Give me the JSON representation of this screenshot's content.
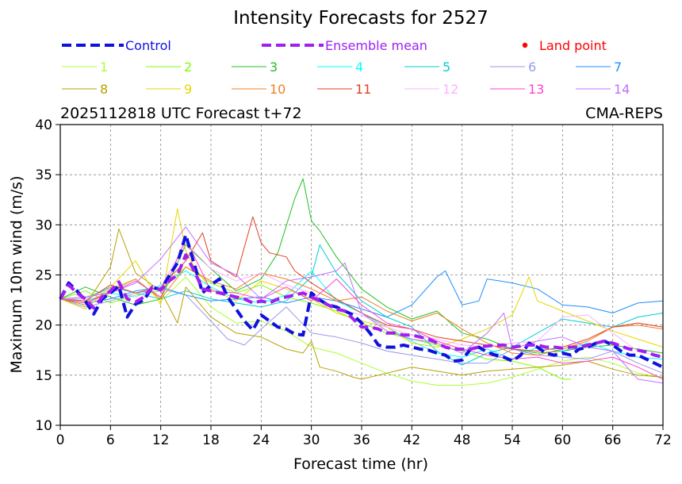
{
  "chart_data": {
    "type": "line",
    "title": "Intensity Forecasts for 2527",
    "subtitle_left": "2025112818 UTC Forecast t+72",
    "subtitle_right": "CMA-REPS",
    "xlabel": "Forecast time (hr)",
    "ylabel": "Maximum 10m wind (m/s)",
    "xlim": [
      0,
      72
    ],
    "ylim": [
      10,
      40
    ],
    "xticks": [
      0,
      6,
      12,
      18,
      24,
      30,
      36,
      42,
      48,
      54,
      60,
      66,
      72
    ],
    "yticks": [
      10,
      15,
      20,
      25,
      30,
      35,
      40
    ],
    "grid": true,
    "legend_special": [
      {
        "name": "Control",
        "color": "#1010e0",
        "style": "dashed"
      },
      {
        "name": "Ensemble mean",
        "color": "#a020f0",
        "style": "dashed"
      },
      {
        "name": "Land point",
        "color": "#ff0000",
        "style": "dot"
      }
    ],
    "series": [
      {
        "name": "Control",
        "color": "#1010e0",
        "width": 4,
        "dash": "12,6",
        "x": [
          0,
          1,
          2,
          3,
          4,
          5,
          6,
          7,
          8,
          9,
          10,
          11,
          12,
          13,
          14,
          15,
          16,
          17,
          18,
          19,
          20,
          21,
          22,
          23,
          24,
          25,
          26,
          27,
          28,
          29,
          30,
          31,
          32,
          33,
          34,
          35,
          36,
          37,
          38,
          39,
          40,
          41,
          42,
          43,
          44,
          45,
          46,
          47,
          48,
          49,
          50,
          51,
          52,
          53,
          54,
          55,
          56,
          57,
          58,
          59,
          60,
          61,
          62,
          63,
          64,
          65,
          66,
          67,
          68,
          69,
          70,
          71,
          72
        ],
        "values": [
          22.6,
          24.2,
          23.4,
          22.4,
          21.1,
          22.6,
          23.2,
          23.9,
          20.8,
          22.1,
          22.5,
          23.8,
          23.5,
          24.9,
          26.2,
          29.0,
          26.1,
          23.2,
          24.0,
          24.6,
          22.8,
          21.6,
          20.4,
          19.5,
          21.0,
          20.4,
          19.8,
          19.6,
          19.1,
          19.0,
          23.2,
          22.5,
          22.0,
          21.8,
          21.4,
          21.0,
          20.2,
          19.2,
          18.0,
          17.8,
          17.8,
          18.0,
          17.8,
          17.6,
          17.5,
          17.2,
          17.0,
          16.4,
          16.5,
          17.6,
          17.8,
          17.3,
          17.0,
          16.8,
          16.4,
          17.0,
          18.2,
          17.8,
          17.2,
          17.0,
          17.2,
          17.0,
          17.6,
          17.8,
          18.2,
          18.4,
          18.0,
          17.4,
          17.0,
          17.0,
          16.6,
          16.2,
          15.8
        ]
      },
      {
        "name": "Ensemble mean",
        "color": "#a020f0",
        "width": 4,
        "dash": "12,6",
        "x": [
          0,
          1,
          2,
          3,
          4,
          5,
          6,
          7,
          8,
          9,
          10,
          11,
          12,
          13,
          14,
          15,
          16,
          17,
          18,
          19,
          20,
          21,
          22,
          23,
          24,
          25,
          26,
          27,
          28,
          29,
          30,
          31,
          32,
          33,
          34,
          35,
          36,
          37,
          38,
          39,
          40,
          41,
          42,
          43,
          44,
          45,
          46,
          47,
          48,
          49,
          50,
          51,
          52,
          53,
          54,
          55,
          56,
          57,
          58,
          59,
          60,
          61,
          62,
          63,
          64,
          65,
          66,
          67,
          68,
          69,
          70,
          71,
          72
        ],
        "values": [
          22.6,
          24.0,
          23.2,
          22.6,
          21.7,
          22.8,
          23.4,
          24.3,
          22.6,
          22.3,
          22.8,
          23.8,
          23.5,
          24.4,
          25.0,
          27.0,
          25.4,
          23.6,
          23.4,
          23.2,
          23.0,
          22.8,
          22.6,
          22.2,
          22.4,
          22.2,
          22.6,
          22.8,
          23.0,
          23.2,
          22.8,
          22.4,
          22.0,
          21.6,
          21.4,
          20.6,
          19.8,
          19.8,
          19.6,
          19.2,
          19.2,
          19.0,
          19.0,
          18.8,
          18.6,
          18.2,
          17.8,
          17.6,
          17.6,
          17.6,
          17.8,
          17.9,
          18.0,
          18.0,
          17.8,
          17.9,
          18.0,
          18.0,
          17.8,
          17.8,
          17.7,
          17.8,
          17.8,
          18.0,
          18.2,
          18.4,
          18.2,
          17.9,
          17.6,
          17.5,
          17.3,
          17.0,
          16.8
        ]
      },
      {
        "name": "1",
        "color": "#adff2f",
        "width": 1,
        "x": [
          0,
          3,
          6,
          9,
          12,
          15,
          18,
          21,
          24,
          27,
          30,
          33,
          36,
          39,
          42,
          45,
          48,
          51,
          54,
          57,
          60,
          63,
          66,
          69,
          72
        ],
        "values": [
          22.6,
          22.8,
          23.6,
          24.6,
          22.4,
          24.8,
          21.8,
          20.2,
          20.4,
          19.4,
          17.8,
          17.2,
          16.2,
          15.2,
          14.4,
          14.0,
          14.0,
          14.2,
          14.8,
          15.6,
          16.4,
          16.8,
          16.2,
          15.2,
          14.8
        ]
      },
      {
        "name": "2",
        "color": "#7cfc00",
        "width": 1,
        "x": [
          0,
          3,
          6,
          9,
          12,
          15,
          18,
          21,
          24,
          27,
          30,
          33,
          36,
          39,
          42,
          45,
          48,
          51,
          54,
          57,
          60,
          61
        ],
        "values": [
          22.6,
          23.4,
          22.2,
          23.0,
          23.4,
          25.8,
          24.2,
          23.2,
          24.0,
          22.8,
          22.2,
          21.4,
          20.2,
          19.2,
          18.6,
          18.0,
          17.4,
          16.6,
          16.4,
          15.8,
          14.6,
          14.6
        ]
      },
      {
        "name": "3",
        "color": "#22c022",
        "width": 1,
        "x": [
          0,
          3,
          6,
          9,
          12,
          15,
          18,
          21,
          24,
          26,
          28,
          29,
          30,
          31,
          33,
          36,
          39,
          42,
          45,
          48,
          51,
          54,
          57,
          60,
          63,
          66,
          69,
          72
        ],
        "values": [
          22.6,
          23.8,
          22.8,
          22.0,
          22.6,
          28.0,
          25.6,
          23.4,
          24.6,
          27.2,
          32.6,
          34.6,
          30.4,
          29.4,
          26.8,
          23.6,
          21.8,
          20.6,
          21.4,
          19.2,
          18.6,
          17.6,
          17.2,
          17.4,
          17.8,
          18.0,
          17.6,
          17.2
        ]
      },
      {
        "name": "4",
        "color": "#00ffff",
        "width": 1,
        "x": [
          0,
          3,
          6,
          9,
          12,
          15,
          18,
          21,
          24,
          27,
          30,
          33,
          36,
          39,
          42,
          45,
          48,
          51,
          54,
          57,
          60,
          63,
          66,
          69,
          72
        ],
        "values": [
          22.6,
          22.4,
          23.2,
          22.8,
          24.0,
          25.4,
          23.8,
          22.6,
          22.2,
          23.0,
          25.4,
          22.4,
          21.2,
          19.8,
          18.4,
          17.2,
          16.8,
          17.6,
          16.6,
          17.8,
          17.4,
          18.2,
          17.4,
          16.8,
          16.6
        ]
      },
      {
        "name": "5",
        "color": "#00ced1",
        "width": 1,
        "x": [
          0,
          3,
          6,
          9,
          12,
          15,
          18,
          21,
          24,
          27,
          30,
          31,
          33,
          36,
          39,
          42,
          45,
          48,
          51,
          54,
          57,
          60,
          63,
          66,
          69,
          72
        ],
        "values": [
          22.6,
          22.6,
          23.8,
          23.2,
          22.6,
          23.4,
          22.6,
          22.2,
          21.8,
          22.4,
          24.8,
          28.0,
          25.2,
          22.4,
          20.8,
          19.8,
          17.4,
          16.0,
          17.2,
          17.8,
          19.2,
          20.6,
          20.2,
          19.8,
          20.8,
          21.2
        ]
      },
      {
        "name": "6",
        "color": "#9999ee",
        "width": 1,
        "x": [
          0,
          3,
          6,
          9,
          12,
          15,
          18,
          20,
          22,
          24,
          27,
          30,
          33,
          36,
          39,
          42,
          45,
          48,
          51,
          54,
          57,
          60,
          63,
          66,
          69,
          72
        ],
        "values": [
          22.6,
          21.8,
          22.4,
          23.2,
          23.6,
          23.0,
          20.4,
          18.6,
          18.0,
          19.6,
          21.8,
          19.2,
          18.8,
          18.2,
          17.4,
          17.0,
          16.6,
          16.2,
          16.2,
          17.6,
          17.0,
          16.8,
          16.6,
          17.4,
          16.2,
          15.2
        ]
      },
      {
        "name": "7",
        "color": "#1e90ff",
        "width": 1,
        "x": [
          0,
          3,
          6,
          9,
          12,
          15,
          18,
          21,
          24,
          27,
          30,
          33,
          36,
          39,
          42,
          45,
          46,
          48,
          50,
          51,
          54,
          57,
          60,
          63,
          66,
          69,
          72
        ],
        "values": [
          22.6,
          22.2,
          22.6,
          23.4,
          23.8,
          23.0,
          22.4,
          22.6,
          22.8,
          22.2,
          22.8,
          22.4,
          21.6,
          20.8,
          22.0,
          24.8,
          25.4,
          22.0,
          22.4,
          24.6,
          24.2,
          23.6,
          22.0,
          21.8,
          21.2,
          22.2,
          22.4
        ]
      },
      {
        "name": "8",
        "color": "#b8a000",
        "width": 1,
        "x": [
          0,
          3,
          6,
          7,
          9,
          12,
          14,
          15,
          18,
          21,
          24,
          27,
          29,
          30,
          31,
          33,
          35,
          36,
          39,
          42,
          45,
          48,
          51,
          54,
          57,
          60,
          63,
          66,
          69,
          72
        ],
        "values": [
          22.6,
          22.0,
          25.8,
          29.6,
          25.2,
          23.4,
          20.2,
          23.8,
          20.8,
          19.2,
          18.8,
          17.6,
          17.2,
          18.4,
          15.8,
          15.4,
          14.8,
          14.6,
          15.2,
          15.8,
          15.4,
          15.0,
          15.4,
          15.6,
          15.8,
          16.0,
          16.4,
          15.6,
          15.0,
          14.8
        ]
      },
      {
        "name": "9",
        "color": "#e6d600",
        "width": 1,
        "x": [
          0,
          3,
          6,
          9,
          12,
          14,
          15,
          16,
          18,
          21,
          24,
          27,
          30,
          33,
          36,
          39,
          42,
          45,
          48,
          51,
          54,
          56,
          57,
          60,
          63,
          66,
          69,
          72
        ],
        "values": [
          22.6,
          21.6,
          23.8,
          26.4,
          22.0,
          31.6,
          27.4,
          25.8,
          23.6,
          22.4,
          24.4,
          23.6,
          22.6,
          21.2,
          20.4,
          19.8,
          18.2,
          17.8,
          18.6,
          19.6,
          21.0,
          24.8,
          22.4,
          21.4,
          20.4,
          19.4,
          18.6,
          17.8
        ]
      },
      {
        "name": "10",
        "color": "#f08020",
        "width": 1,
        "x": [
          0,
          3,
          6,
          9,
          12,
          15,
          18,
          21,
          24,
          27,
          30,
          33,
          36,
          39,
          42,
          45,
          48,
          51,
          54,
          57,
          60,
          63,
          66,
          69,
          72
        ],
        "values": [
          22.6,
          22.2,
          23.4,
          24.6,
          22.6,
          25.8,
          24.4,
          23.6,
          25.2,
          24.6,
          23.6,
          22.4,
          22.8,
          21.4,
          20.4,
          21.2,
          19.6,
          18.2,
          17.2,
          17.0,
          17.6,
          18.4,
          19.8,
          20.0,
          19.6
        ]
      },
      {
        "name": "11",
        "color": "#e04020",
        "width": 1,
        "x": [
          0,
          3,
          6,
          9,
          12,
          15,
          17,
          18,
          21,
          23,
          24,
          25,
          26,
          27,
          28,
          30,
          33,
          36,
          39,
          42,
          45,
          48,
          51,
          54,
          57,
          60,
          63,
          66,
          69,
          72
        ],
        "values": [
          22.6,
          22.4,
          24.0,
          23.2,
          23.8,
          26.4,
          29.2,
          26.4,
          24.8,
          30.8,
          28.2,
          27.2,
          27.0,
          26.8,
          25.4,
          24.2,
          22.6,
          21.2,
          20.0,
          19.6,
          18.8,
          18.4,
          18.0,
          17.6,
          17.4,
          17.8,
          18.6,
          19.8,
          20.2,
          19.8
        ]
      },
      {
        "name": "12",
        "color": "#ffb0ff",
        "width": 1,
        "x": [
          0,
          3,
          6,
          9,
          12,
          15,
          18,
          21,
          24,
          27,
          30,
          33,
          36,
          39,
          42,
          45,
          48,
          51,
          54,
          57,
          60,
          63,
          66,
          69,
          72
        ],
        "values": [
          22.6,
          22.6,
          23.6,
          22.8,
          23.8,
          28.2,
          25.6,
          24.4,
          25.2,
          24.0,
          23.2,
          21.6,
          21.0,
          19.8,
          19.0,
          18.6,
          18.0,
          17.8,
          18.2,
          18.4,
          20.8,
          21.0,
          19.2,
          17.4,
          16.8
        ]
      },
      {
        "name": "13",
        "color": "#ff40d0",
        "width": 1,
        "x": [
          0,
          3,
          6,
          9,
          12,
          15,
          18,
          21,
          24,
          27,
          30,
          33,
          36,
          39,
          42,
          45,
          48,
          51,
          54,
          57,
          60,
          63,
          66,
          69,
          72
        ],
        "values": [
          22.6,
          22.2,
          23.2,
          24.4,
          22.8,
          28.6,
          23.4,
          23.2,
          22.6,
          23.8,
          22.4,
          24.6,
          22.0,
          20.2,
          19.6,
          18.4,
          17.6,
          17.0,
          16.6,
          16.8,
          16.2,
          16.4,
          16.8,
          15.8,
          14.6
        ]
      },
      {
        "name": "14",
        "color": "#c070ff",
        "width": 1,
        "x": [
          0,
          3,
          6,
          9,
          12,
          15,
          18,
          21,
          24,
          27,
          30,
          33,
          34,
          36,
          39,
          42,
          45,
          48,
          51,
          53,
          54,
          57,
          60,
          63,
          66,
          69,
          72
        ],
        "values": [
          22.6,
          22.8,
          23.2,
          24.2,
          26.6,
          29.8,
          26.2,
          25.0,
          22.6,
          24.4,
          24.8,
          25.4,
          26.2,
          21.2,
          19.4,
          18.6,
          18.2,
          17.2,
          19.2,
          21.2,
          17.6,
          18.4,
          18.8,
          17.8,
          17.4,
          14.6,
          14.2
        ]
      }
    ]
  }
}
